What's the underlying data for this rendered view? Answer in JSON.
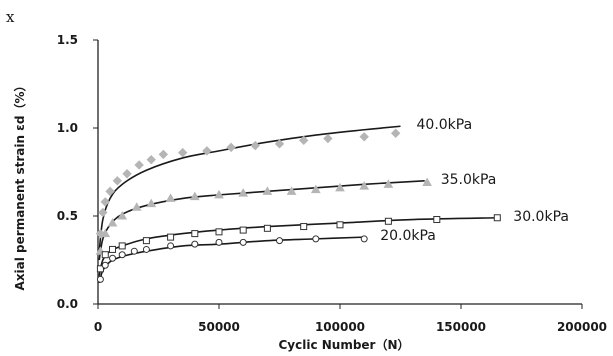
{
  "chart_data": {
    "type": "scatter",
    "corner_mark": "x",
    "xlabel": "Cyclic Number（N）",
    "ylabel": "Axial permanent strain εd（%）",
    "xlim": [
      0,
      200000
    ],
    "ylim": [
      0,
      1.5
    ],
    "xticks": [
      0,
      50000,
      100000,
      150000,
      200000
    ],
    "xtick_labels": [
      "0",
      "50000",
      "100000",
      "150000",
      "200000"
    ],
    "yticks": [
      0,
      0.5,
      1.0,
      1.5
    ],
    "ytick_labels": [
      "0.0",
      "0.5",
      "1.0",
      "1.5"
    ],
    "grid": false,
    "series": [
      {
        "name": "40.0kPa",
        "marker": "diamond",
        "color": "#b5b5b5",
        "points": [
          [
            1000,
            0.4
          ],
          [
            2000,
            0.52
          ],
          [
            3000,
            0.58
          ],
          [
            5000,
            0.64
          ],
          [
            8000,
            0.7
          ],
          [
            12000,
            0.74
          ],
          [
            17000,
            0.79
          ],
          [
            22000,
            0.82
          ],
          [
            27000,
            0.85
          ],
          [
            35000,
            0.86
          ],
          [
            45000,
            0.87
          ],
          [
            55000,
            0.89
          ],
          [
            65000,
            0.9
          ],
          [
            75000,
            0.91
          ],
          [
            85000,
            0.93
          ],
          [
            95000,
            0.94
          ],
          [
            110000,
            0.95
          ],
          [
            123000,
            0.97
          ]
        ],
        "fit": [
          [
            500,
            0.3
          ],
          [
            2000,
            0.48
          ],
          [
            5000,
            0.6
          ],
          [
            10000,
            0.68
          ],
          [
            20000,
            0.76
          ],
          [
            35000,
            0.83
          ],
          [
            50000,
            0.87
          ],
          [
            70000,
            0.92
          ],
          [
            90000,
            0.96
          ],
          [
            110000,
            0.99
          ],
          [
            125000,
            1.01
          ]
        ]
      },
      {
        "name": "35.0kPa",
        "marker": "triangle",
        "color": "#b5b5b5",
        "points": [
          [
            1000,
            0.3
          ],
          [
            3000,
            0.4
          ],
          [
            6000,
            0.46
          ],
          [
            10000,
            0.5
          ],
          [
            16000,
            0.55
          ],
          [
            22000,
            0.57
          ],
          [
            30000,
            0.6
          ],
          [
            40000,
            0.61
          ],
          [
            50000,
            0.62
          ],
          [
            60000,
            0.63
          ],
          [
            70000,
            0.64
          ],
          [
            80000,
            0.64
          ],
          [
            90000,
            0.65
          ],
          [
            100000,
            0.66
          ],
          [
            110000,
            0.67
          ],
          [
            120000,
            0.68
          ],
          [
            136000,
            0.69
          ]
        ],
        "fit": [
          [
            500,
            0.25
          ],
          [
            2000,
            0.37
          ],
          [
            5000,
            0.45
          ],
          [
            10000,
            0.51
          ],
          [
            20000,
            0.56
          ],
          [
            35000,
            0.6
          ],
          [
            50000,
            0.62
          ],
          [
            70000,
            0.64
          ],
          [
            90000,
            0.66
          ],
          [
            110000,
            0.68
          ],
          [
            135000,
            0.7
          ]
        ]
      },
      {
        "name": "30.0kPa",
        "marker": "square",
        "color": "#333333",
        "points": [
          [
            1000,
            0.2
          ],
          [
            3000,
            0.28
          ],
          [
            6000,
            0.31
          ],
          [
            10000,
            0.33
          ],
          [
            20000,
            0.36
          ],
          [
            30000,
            0.38
          ],
          [
            40000,
            0.4
          ],
          [
            50000,
            0.41
          ],
          [
            60000,
            0.42
          ],
          [
            70000,
            0.43
          ],
          [
            85000,
            0.44
          ],
          [
            100000,
            0.45
          ],
          [
            120000,
            0.47
          ],
          [
            140000,
            0.48
          ],
          [
            165000,
            0.49
          ]
        ],
        "fit": [
          [
            500,
            0.16
          ],
          [
            2000,
            0.25
          ],
          [
            5000,
            0.3
          ],
          [
            10000,
            0.33
          ],
          [
            20000,
            0.37
          ],
          [
            35000,
            0.4
          ],
          [
            50000,
            0.42
          ],
          [
            70000,
            0.44
          ],
          [
            100000,
            0.46
          ],
          [
            130000,
            0.48
          ],
          [
            165000,
            0.49
          ]
        ]
      },
      {
        "name": "20.0kPa",
        "marker": "circle",
        "color": "#333333",
        "points": [
          [
            1000,
            0.14
          ],
          [
            3000,
            0.22
          ],
          [
            6000,
            0.26
          ],
          [
            10000,
            0.28
          ],
          [
            15000,
            0.3
          ],
          [
            20000,
            0.31
          ],
          [
            30000,
            0.33
          ],
          [
            40000,
            0.34
          ],
          [
            50000,
            0.35
          ],
          [
            60000,
            0.35
          ],
          [
            75000,
            0.36
          ],
          [
            90000,
            0.37
          ],
          [
            110000,
            0.37
          ]
        ],
        "fit": [
          [
            500,
            0.12
          ],
          [
            2000,
            0.19
          ],
          [
            5000,
            0.24
          ],
          [
            10000,
            0.27
          ],
          [
            20000,
            0.3
          ],
          [
            35000,
            0.33
          ],
          [
            50000,
            0.34
          ],
          [
            70000,
            0.36
          ],
          [
            90000,
            0.37
          ],
          [
            110000,
            0.38
          ]
        ]
      }
    ]
  }
}
